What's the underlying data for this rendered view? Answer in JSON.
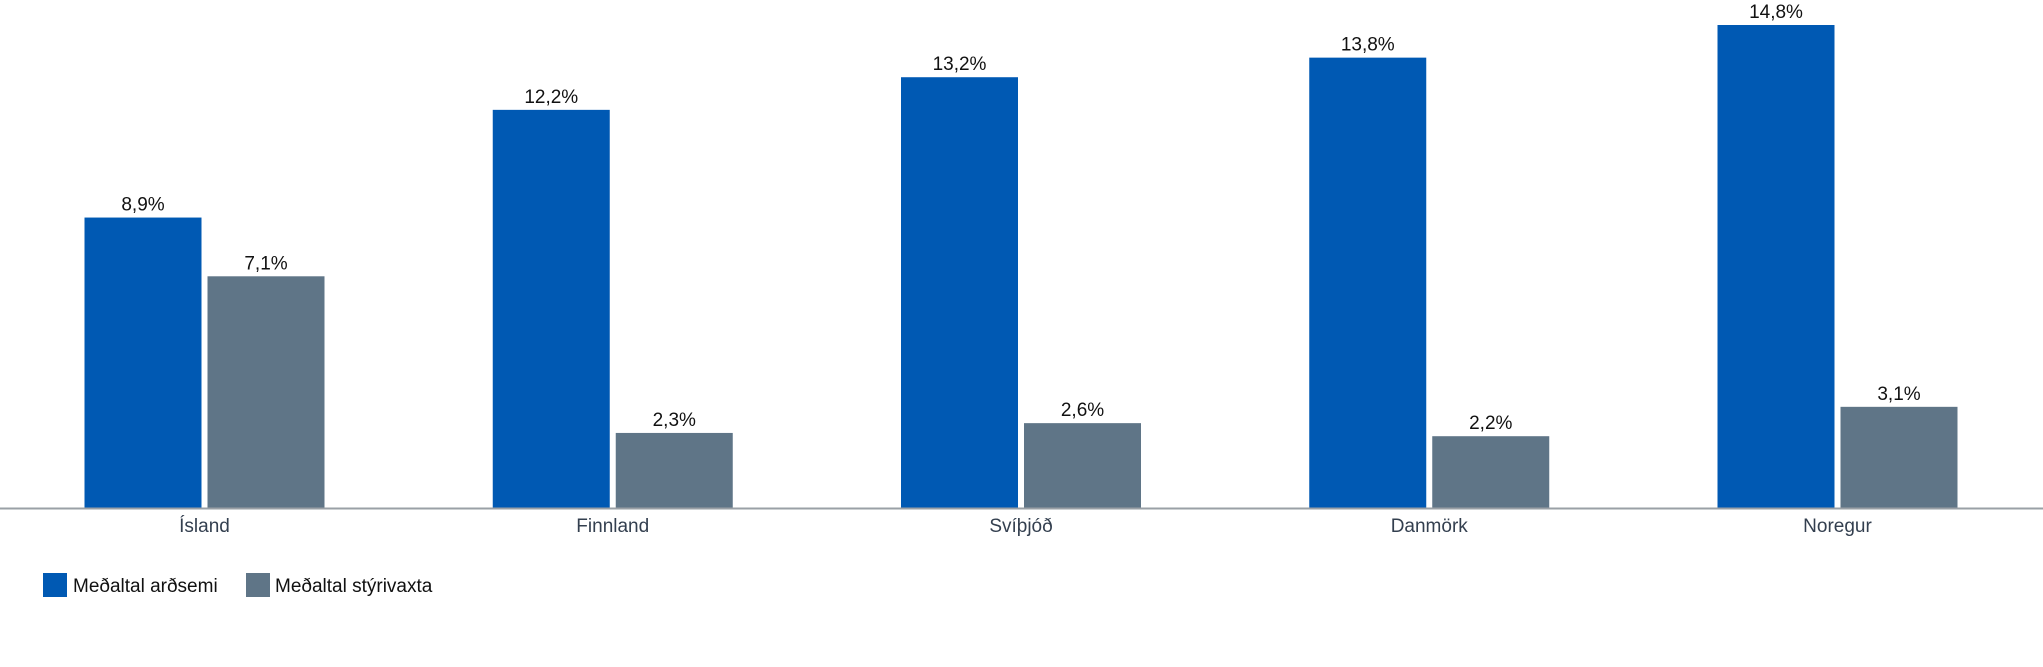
{
  "chart_data": {
    "type": "bar",
    "title": "",
    "xlabel": "",
    "ylabel": "",
    "ylim": [
      0,
      14.8
    ],
    "grid": false,
    "legend_position": "bottom-left",
    "categories": [
      "Ísland",
      "Finnland",
      "Svíþjóð",
      "Danmörk",
      "Noregur"
    ],
    "series": [
      {
        "name": "Meðaltal arðsemi",
        "color": "#0059B3",
        "values": [
          8.9,
          12.2,
          13.2,
          13.8,
          14.8
        ],
        "labels": [
          "8,9%",
          "12,2%",
          "13,2%",
          "13,8%",
          "14,8%"
        ]
      },
      {
        "name": "Meðaltal stýrivaxta",
        "color": "#5F7587",
        "values": [
          7.1,
          2.3,
          2.6,
          2.2,
          3.1
        ],
        "labels": [
          "7,1%",
          "2,3%",
          "2,6%",
          "2,2%",
          "3,1%"
        ]
      }
    ]
  }
}
